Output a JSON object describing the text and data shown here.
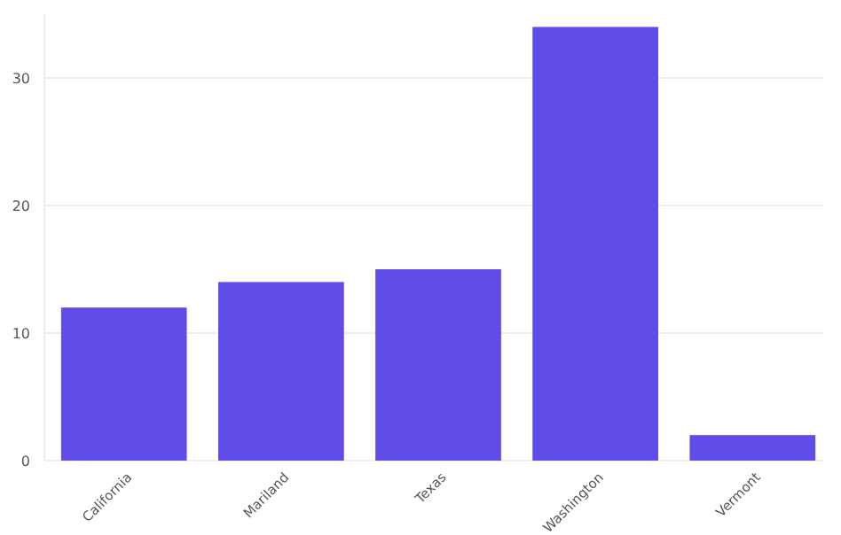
{
  "chart_data": {
    "type": "bar",
    "categories": [
      "California",
      "Mariland",
      "Texas",
      "Washington",
      "Vermont"
    ],
    "values": [
      12,
      14,
      15,
      34,
      2
    ],
    "color": "#604ce8",
    "ylim": [
      0,
      35
    ],
    "yticks": [
      0,
      10,
      20,
      30
    ],
    "grid": "y"
  }
}
